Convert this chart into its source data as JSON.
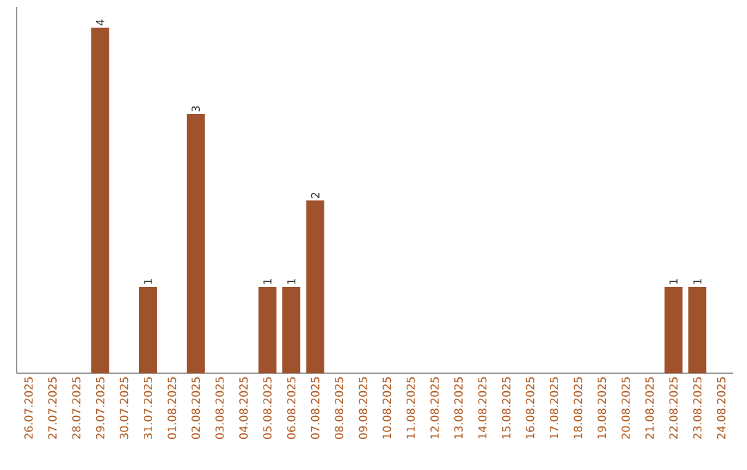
{
  "chart_data": {
    "type": "bar",
    "categories": [
      "26.07.2025",
      "27.07.2025",
      "28.07.2025",
      "29.07.2025",
      "30.07.2025",
      "31.07.2025",
      "01.08.2025",
      "02.08.2025",
      "03.08.2025",
      "04.08.2025",
      "05.08.2025",
      "06.08.2025",
      "07.08.2025",
      "08.08.2025",
      "09.08.2025",
      "10.08.2025",
      "11.08.2025",
      "12.08.2025",
      "13.08.2025",
      "14.08.2025",
      "15.08.2025",
      "16.08.2025",
      "17.08.2025",
      "18.08.2025",
      "19.08.2025",
      "20.08.2025",
      "21.08.2025",
      "22.08.2025",
      "23.08.2025",
      "24.08.2025"
    ],
    "values": [
      0,
      0,
      0,
      4,
      0,
      1,
      0,
      3,
      0,
      0,
      1,
      1,
      2,
      0,
      0,
      0,
      0,
      0,
      0,
      0,
      0,
      0,
      0,
      0,
      0,
      0,
      0,
      1,
      1,
      0
    ],
    "value_labels": [
      null,
      null,
      null,
      "4",
      null,
      "1",
      null,
      "3",
      null,
      null,
      "1",
      "1",
      "2",
      null,
      null,
      null,
      null,
      null,
      null,
      null,
      null,
      null,
      null,
      null,
      null,
      null,
      null,
      "1",
      "1",
      null
    ],
    "color": "#a0522d"
  }
}
